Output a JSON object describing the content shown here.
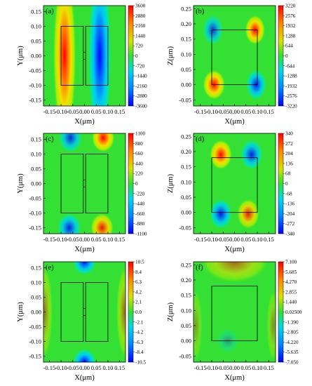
{
  "chart_data": [
    {
      "panel": "(a)",
      "type": "heatmap",
      "xlabel": "X(μm)",
      "ylabel": "Y(μm)",
      "xticks": [
        "-0.15",
        "-0.10",
        "-0.05",
        "0.00",
        "0.05",
        "0.10",
        "0.15"
      ],
      "yticks": [
        "0.15",
        "0.10",
        "0.05",
        "0.00",
        "-0.05",
        "-0.10",
        "-0.15"
      ],
      "xlim": [
        -0.175,
        0.175
      ],
      "ylim": [
        -0.17,
        0.17
      ],
      "colorbar_ticks": [
        "3600",
        "2880",
        "2160",
        "1440",
        "720",
        "0",
        "-720",
        "-1440",
        "-2160",
        "-2880",
        "-3600"
      ],
      "colorbar_range": [
        -3600,
        3600
      ],
      "pattern": "two vertical bands: positive near x=-0.08, negative near x=+0.06"
    },
    {
      "panel": "(b)",
      "type": "heatmap",
      "xlabel": "X(μm)",
      "ylabel": "Z(μm)",
      "xticks": [
        "-0.15",
        "-0.10",
        "-0.05",
        "0.00",
        "0.05",
        "0.10",
        "0.15"
      ],
      "yticks": [
        "0.25",
        "0.20",
        "0.15",
        "0.10",
        "0.05",
        "0.00",
        "-0.05"
      ],
      "xlim": [
        -0.18,
        0.18
      ],
      "ylim": [
        -0.07,
        0.26
      ],
      "colorbar_ticks": [
        "3220",
        "2576",
        "1932",
        "1288",
        "644",
        "0",
        "-644",
        "-1288",
        "-1932",
        "-2576",
        "-3220"
      ],
      "colorbar_range": [
        -3220,
        3220
      ],
      "pattern": "four lobes at box corners"
    },
    {
      "panel": "(c)",
      "type": "heatmap",
      "xlabel": "X(μm)",
      "ylabel": "Y(μm)",
      "xticks": [
        "-0.15",
        "-0.10",
        "-0.05",
        "0.00",
        "0.05",
        "0.10",
        "0.15"
      ],
      "yticks": [
        "0.15",
        "0.10",
        "0.05",
        "0.00",
        "-0.05",
        "-0.10",
        "-0.15"
      ],
      "xlim": [
        -0.175,
        0.175
      ],
      "ylim": [
        -0.17,
        0.17
      ],
      "colorbar_ticks": [
        "1100",
        "880",
        "660",
        "440",
        "220",
        "0",
        "-220",
        "-440",
        "-660",
        "-880",
        "-1100"
      ],
      "colorbar_range": [
        -1100,
        1100
      ],
      "pattern": "four lobes at top and bottom edges"
    },
    {
      "panel": "(d)",
      "type": "heatmap",
      "xlabel": "X(μm)",
      "ylabel": "Z(μm)",
      "xticks": [
        "-0.15",
        "-0.10",
        "-0.05",
        "0.00",
        "0.05",
        "0.10",
        "0.15"
      ],
      "yticks": [
        "0.25",
        "0.20",
        "0.15",
        "0.10",
        "0.05",
        "0.00",
        "-0.05"
      ],
      "xlim": [
        -0.18,
        0.18
      ],
      "ylim": [
        -0.07,
        0.26
      ],
      "colorbar_ticks": [
        "340",
        "272",
        "204",
        "136",
        "68",
        "0",
        "-68",
        "-136",
        "-204",
        "-272",
        "-340"
      ],
      "colorbar_range": [
        -340,
        340
      ],
      "pattern": "four lobes at box top and bottom edges"
    },
    {
      "panel": "(e)",
      "type": "heatmap",
      "xlabel": "X(μm)",
      "ylabel": "Y(μm)",
      "xticks": [
        "-0.15",
        "-0.10",
        "-0.05",
        "0.00",
        "0.05",
        "0.10",
        "0.15"
      ],
      "yticks": [
        "0.15",
        "0.10",
        "0.05",
        "0.00",
        "-0.05",
        "-0.10",
        "-0.15"
      ],
      "xlim": [
        -0.175,
        0.175
      ],
      "ylim": [
        -0.17,
        0.17
      ],
      "colorbar_ticks": [
        "10.5",
        "8.4",
        "6.3",
        "4.2",
        "2.1",
        "0.0",
        "-2.1",
        "-4.2",
        "-6.3",
        "-8.4",
        "-10.5"
      ],
      "colorbar_range": [
        -10.5,
        10.5
      ],
      "pattern": "negative lobes at top and bottom center, positive at left and right edges"
    },
    {
      "panel": "(f)",
      "type": "heatmap",
      "xlabel": "X(μm)",
      "ylabel": "Z(μm)",
      "xticks": [
        "-0.15",
        "-0.10",
        "-0.05",
        "0.00",
        "0.05",
        "0.10",
        "0.15"
      ],
      "yticks": [
        "0.25",
        "0.20",
        "0.15",
        "0.10",
        "0.05",
        "0.00",
        "-0.05"
      ],
      "xlim": [
        -0.18,
        0.18
      ],
      "ylim": [
        -0.07,
        0.26
      ],
      "colorbar_ticks": [
        "7.100",
        "5.685",
        "4.270",
        "2.855",
        "1.440",
        "0.02500",
        "-1.390",
        "-2.805",
        "-4.220",
        "-5.635",
        "-7.050"
      ],
      "colorbar_range": [
        -7.05,
        7.1
      ],
      "pattern": "positive above box, weak negative near box bottom"
    }
  ]
}
